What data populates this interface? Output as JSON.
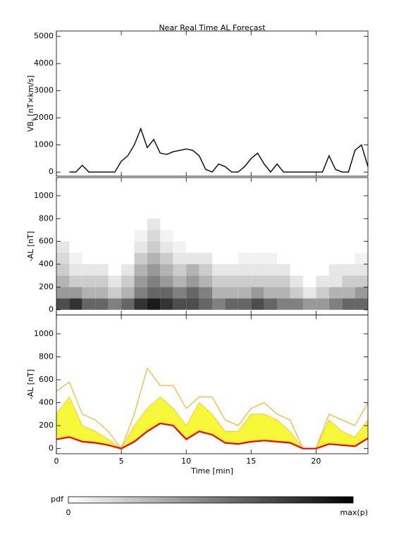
{
  "title": "Near Real Time AL Forecast",
  "chart_data": [
    {
      "type": "line",
      "ylabel": {
        "main": "VB",
        "sub": "s",
        "unit": "[nT×km/s]"
      },
      "xlim": [
        0,
        24
      ],
      "xticks": [
        0,
        5,
        10,
        15,
        20
      ],
      "ylim": [
        -150,
        5200
      ],
      "yticks": [
        0,
        1000,
        2000,
        3000,
        4000,
        5000
      ],
      "x": [
        0,
        0.5,
        1,
        1.5,
        2,
        2.5,
        3,
        3.5,
        4,
        4.5,
        5,
        5.5,
        6,
        6.5,
        7,
        7.5,
        8,
        8.5,
        9,
        9.5,
        10,
        10.5,
        11,
        11.5,
        12,
        12.5,
        13,
        13.5,
        14,
        14.5,
        15,
        15.5,
        16,
        16.5,
        17,
        17.5,
        18,
        18.5,
        19,
        19.5,
        20,
        20.5,
        21,
        21.5,
        22,
        22.5,
        23,
        23.5,
        24
      ],
      "series": [
        {
          "color": "#000000",
          "values": [
            null,
            null,
            0,
            0,
            250,
            0,
            0,
            0,
            0,
            0,
            400,
            600,
            1000,
            1600,
            900,
            1200,
            700,
            650,
            750,
            800,
            850,
            800,
            600,
            100,
            0,
            300,
            200,
            0,
            0,
            200,
            500,
            700,
            300,
            0,
            300,
            0,
            0,
            0,
            0,
            0,
            0,
            0,
            600,
            100,
            0,
            0,
            800,
            1000,
            200
          ]
        }
      ]
    },
    {
      "type": "heatmap",
      "ylabel": "-AL [nT]",
      "xlim": [
        0,
        24
      ],
      "xticks": [
        0,
        5,
        10,
        15,
        20
      ],
      "ylim": [
        -45,
        1160
      ],
      "yticks": [
        0,
        200,
        400,
        600,
        800,
        1000
      ],
      "xbins": [
        0,
        1,
        2,
        3,
        4,
        5,
        6,
        7,
        8,
        9,
        10,
        11,
        12,
        13,
        14,
        15,
        16,
        17,
        18,
        19,
        20,
        21,
        22,
        23,
        24
      ],
      "ybins": [
        0,
        100,
        200,
        300,
        400,
        500,
        600,
        700,
        800
      ],
      "values": [
        [
          0.7,
          0.8,
          0.6,
          0.6,
          0.5,
          0.6,
          0.8,
          0.9,
          0.8,
          0.7,
          0.7,
          0.6,
          0.5,
          0.6,
          0.6,
          0.7,
          0.6,
          0.5,
          0.5,
          0.4,
          0.4,
          0.5,
          0.6,
          0.6
        ],
        [
          0.4,
          0.4,
          0.3,
          0.3,
          0.2,
          0.3,
          0.5,
          0.6,
          0.6,
          0.5,
          0.6,
          0.5,
          0.3,
          0.3,
          0.3,
          0.4,
          0.3,
          0.3,
          0.2,
          0.1,
          0.2,
          0.3,
          0.3,
          0.4
        ],
        [
          0.3,
          0.2,
          0.2,
          0.2,
          0.1,
          0.2,
          0.4,
          0.5,
          0.4,
          0.3,
          0.4,
          0.3,
          0.2,
          0.2,
          0.2,
          0.2,
          0.2,
          0.2,
          0.1,
          0,
          0.1,
          0.1,
          0.2,
          0.2
        ],
        [
          0.2,
          0.1,
          0.1,
          0.1,
          0,
          0.1,
          0.3,
          0.4,
          0.3,
          0.2,
          0.3,
          0.2,
          0.1,
          0.1,
          0.1,
          0.1,
          0.1,
          0.1,
          0,
          0,
          0,
          0.1,
          0.1,
          0.1
        ],
        [
          0.15,
          0.05,
          0,
          0,
          0,
          0,
          0.2,
          0.3,
          0.2,
          0.1,
          0.1,
          0.1,
          0,
          0,
          0.05,
          0.05,
          0.05,
          0,
          0,
          0,
          0,
          0,
          0,
          0.05
        ],
        [
          0.1,
          0,
          0,
          0,
          0,
          0,
          0.1,
          0.2,
          0.1,
          0.05,
          0,
          0,
          0,
          0,
          0,
          0,
          0,
          0,
          0,
          0,
          0,
          0,
          0,
          0
        ],
        [
          0,
          0,
          0,
          0,
          0,
          0,
          0.05,
          0.15,
          0.05,
          0,
          0,
          0,
          0,
          0,
          0,
          0,
          0,
          0,
          0,
          0,
          0,
          0,
          0,
          0
        ],
        [
          0,
          0,
          0,
          0,
          0,
          0,
          0,
          0.1,
          0,
          0,
          0,
          0,
          0,
          0,
          0,
          0,
          0,
          0,
          0,
          0,
          0,
          0,
          0,
          0
        ]
      ]
    },
    {
      "type": "band",
      "ylabel": "-AL [nT]",
      "xlabel": "Time [min]",
      "xlim": [
        0,
        24
      ],
      "xticks": [
        0,
        5,
        10,
        15,
        20
      ],
      "ylim": [
        -45,
        1165
      ],
      "yticks": [
        0,
        200,
        400,
        600,
        800,
        1000
      ],
      "x": [
        0,
        1,
        2,
        3,
        4,
        5,
        6,
        7,
        8,
        9,
        10,
        11,
        12,
        13,
        14,
        15,
        16,
        17,
        18,
        19,
        20,
        21,
        22,
        23,
        24
      ],
      "band": {
        "color": "#f7f73a",
        "low": [
          80,
          100,
          60,
          50,
          30,
          0,
          60,
          150,
          220,
          200,
          80,
          150,
          120,
          50,
          40,
          60,
          70,
          60,
          50,
          0,
          0,
          40,
          30,
          20,
          90
        ],
        "high": [
          300,
          450,
          200,
          150,
          80,
          0,
          200,
          350,
          450,
          350,
          200,
          400,
          300,
          150,
          150,
          300,
          300,
          250,
          150,
          0,
          0,
          250,
          150,
          100,
          250
        ]
      },
      "series": [
        {
          "color": "#ffa500",
          "values": [
            500,
            580,
            300,
            250,
            150,
            0,
            300,
            700,
            550,
            550,
            350,
            450,
            450,
            250,
            200,
            350,
            400,
            300,
            250,
            0,
            0,
            300,
            250,
            200,
            400
          ]
        },
        {
          "color": "#ff0000",
          "values": [
            80,
            100,
            60,
            50,
            30,
            0,
            60,
            150,
            220,
            200,
            80,
            150,
            120,
            50,
            40,
            60,
            70,
            60,
            50,
            0,
            0,
            40,
            30,
            20,
            90
          ]
        }
      ]
    }
  ],
  "colorbar": {
    "label": "pdf",
    "min_label": "0",
    "max_label": "max(p)"
  }
}
